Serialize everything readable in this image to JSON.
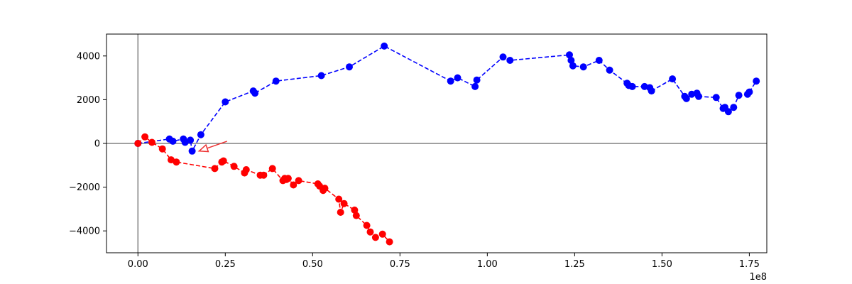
{
  "chart_data": {
    "type": "scatter",
    "title": "",
    "xlabel": "",
    "ylabel": "",
    "x_offset_label": "1e8",
    "x_scale": 100000000,
    "xlim": [
      -0.09,
      1.8
    ],
    "ylim": [
      -5000,
      5000
    ],
    "grid": false,
    "legend": "none",
    "x_ticks": [
      {
        "value": 0.0,
        "label": "0.00"
      },
      {
        "value": 0.25,
        "label": "0.25"
      },
      {
        "value": 0.5,
        "label": "0.50"
      },
      {
        "value": 0.75,
        "label": "0.75"
      },
      {
        "value": 1.0,
        "label": "1.00"
      },
      {
        "value": 1.25,
        "label": "1.25"
      },
      {
        "value": 1.5,
        "label": "1.50"
      },
      {
        "value": 1.75,
        "label": "1.75"
      }
    ],
    "y_ticks": [
      {
        "value": 4000,
        "label": "4000"
      },
      {
        "value": 2000,
        "label": "2000"
      },
      {
        "value": 0,
        "label": "0"
      },
      {
        "value": -2000,
        "label": "−2000"
      },
      {
        "value": -4000,
        "label": "−4000"
      }
    ],
    "axis_lines": {
      "color": "#808080"
    },
    "arrow": {
      "from": [
        0.255,
        100
      ],
      "to": [
        0.175,
        -350
      ],
      "color": "#ee3333"
    },
    "series": [
      {
        "color": "#0000ff",
        "x": [
          0.0,
          0.09,
          0.1,
          0.13,
          0.135,
          0.15,
          0.155,
          0.18,
          0.25,
          0.33,
          0.335,
          0.395,
          0.525,
          0.605,
          0.705,
          0.895,
          0.915,
          0.965,
          0.97,
          1.045,
          1.065,
          1.235,
          1.24,
          1.245,
          1.275,
          1.32,
          1.35,
          1.4,
          1.405,
          1.415,
          1.45,
          1.465,
          1.47,
          1.53,
          1.565,
          1.57,
          1.585,
          1.6,
          1.605,
          1.655,
          1.675,
          1.68,
          1.69,
          1.705,
          1.72,
          1.745,
          1.75,
          1.77
        ],
        "y": [
          0,
          200,
          100,
          200,
          50,
          150,
          -350,
          400,
          1900,
          2400,
          2300,
          2850,
          3100,
          3500,
          4450,
          2850,
          3000,
          2600,
          2900,
          3950,
          3800,
          4050,
          3800,
          3550,
          3500,
          3800,
          3350,
          2750,
          2650,
          2600,
          2600,
          2550,
          2400,
          2950,
          2150,
          2050,
          2250,
          2300,
          2150,
          2100,
          1600,
          1650,
          1450,
          1650,
          2200,
          2250,
          2350,
          2850
        ]
      },
      {
        "color": "#ff0000",
        "x": [
          0.0,
          0.02,
          0.04,
          0.07,
          0.095,
          0.11,
          0.22,
          0.24,
          0.245,
          0.275,
          0.305,
          0.31,
          0.35,
          0.36,
          0.385,
          0.415,
          0.42,
          0.425,
          0.43,
          0.445,
          0.46,
          0.515,
          0.52,
          0.53,
          0.535,
          0.575,
          0.58,
          0.59,
          0.62,
          0.625,
          0.655,
          0.665,
          0.68,
          0.7,
          0.72
        ],
        "y": [
          0,
          300,
          50,
          -250,
          -750,
          -850,
          -1150,
          -850,
          -800,
          -1050,
          -1350,
          -1200,
          -1450,
          -1450,
          -1150,
          -1700,
          -1600,
          -1650,
          -1600,
          -1900,
          -1700,
          -1850,
          -1950,
          -2150,
          -2050,
          -2550,
          -3150,
          -2750,
          -3050,
          -3300,
          -3750,
          -4050,
          -4300,
          -4150,
          -4500
        ]
      }
    ]
  }
}
